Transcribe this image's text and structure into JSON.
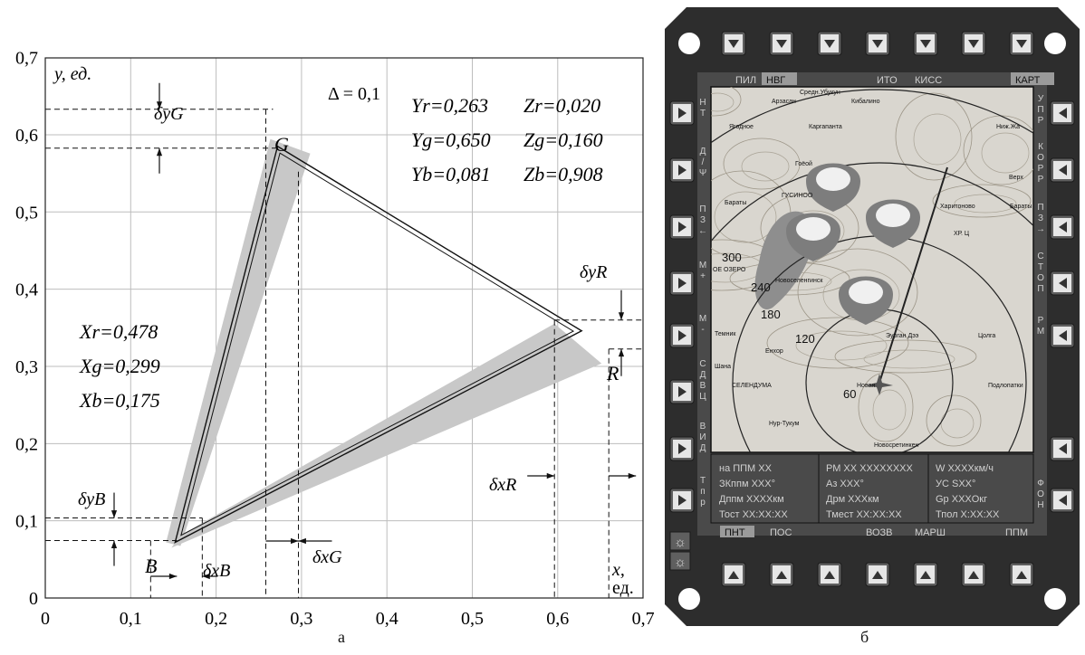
{
  "panel_a": {
    "caption": "а",
    "y_axis_label": "y, ед.",
    "x_axis_label_1": "x,",
    "x_axis_label_2": "ед.",
    "x_ticks": [
      "0",
      "0,1",
      "0,2",
      "0,3",
      "0,4",
      "0,5",
      "0,6",
      "0,7"
    ],
    "y_ticks": [
      "0",
      "0,1",
      "0,2",
      "0,3",
      "0,4",
      "0,5",
      "0,6",
      "0,7"
    ],
    "delta_label": "Δ = 0,1",
    "vertex_G": "G",
    "vertex_R": "R",
    "vertex_B": "B",
    "Y_values": [
      "Yr=0,263",
      "Yg=0,650",
      "Yb=0,081"
    ],
    "Z_values": [
      "Zr=0,020",
      "Zg=0,160",
      "Zb=0,908"
    ],
    "X_values": [
      "Xr=0,478",
      "Xg=0,299",
      "Xb=0,175"
    ],
    "dims": {
      "dyG": "δyG",
      "dyR": "δyR",
      "dyB": "δyB",
      "dxR": "δxR",
      "dxG": "δxG",
      "dxB": "δxB"
    },
    "vertices": {
      "G": [
        0.272,
        0.585
      ],
      "R": [
        0.628,
        0.346
      ],
      "B": [
        0.152,
        0.072
      ]
    },
    "ticks_num": [
      0,
      0.1,
      0.2,
      0.3,
      0.4,
      0.5,
      0.6,
      0.7
    ]
  },
  "panel_b": {
    "caption": "б",
    "top_tabs": [
      "ПИЛ",
      "НВГ",
      "ИТО",
      "КИСС",
      "КАРТ"
    ],
    "bottom_tabs": [
      "ПНТ",
      "ПОС",
      "ВОЗВ",
      "МАРШ",
      "ППМ"
    ],
    "left_side": [
      "Н Т",
      "Д / Ψ",
      "П З ←",
      "М +",
      "М -",
      "С Д В Ц",
      "В И Д",
      "Т п р"
    ],
    "right_side": [
      "У П Р",
      "К О Р Р",
      "П З →",
      "С Т О П",
      "Р М",
      "",
      "Ф О Н"
    ],
    "map_labels": [
      "Средн.Убукун",
      "Арзасан",
      "Кибалино",
      "Ягодное",
      "Каргапанта",
      "Ниж.Жа",
      "Гоёой",
      "ГУСИНОО",
      "Бараты",
      "Верх",
      "Харитоново",
      "Бараты",
      "ХР. Ц",
      "300",
      "ОЕ ОЗЕРО",
      "240",
      "Новоселенгинск",
      "180",
      "120",
      "Темник",
      "Енхор",
      "Шана",
      "Эурган Дээ",
      "Цолга",
      "СЕЛЕНДУМА",
      "60",
      "Новая",
      "Подлопатки",
      "Нур-Тукум",
      "Новосретинкен"
    ],
    "info": {
      "col1": [
        "на ППМ   XX",
        "ЗКппм  XXX°",
        "Дппм  XXXXкм",
        "Тост    XX:XX:XX"
      ],
      "col2": [
        "РМ XX XXXXXXXX",
        "Аз  XXX°",
        "Дрм   XXXкм",
        "Тмест   XX:XX:XX"
      ],
      "col3": [
        "W   XXXXкм/ч",
        "УС SXX°",
        "Gр   XXXОкг",
        "Тпол   X:XX:XX"
      ]
    },
    "sun_icon": "☼",
    "colors": {
      "bezel": "#2d2d2d",
      "screen": "#4a4a4a",
      "key": "#5f5f5f",
      "text": "#c8c8c8"
    }
  }
}
